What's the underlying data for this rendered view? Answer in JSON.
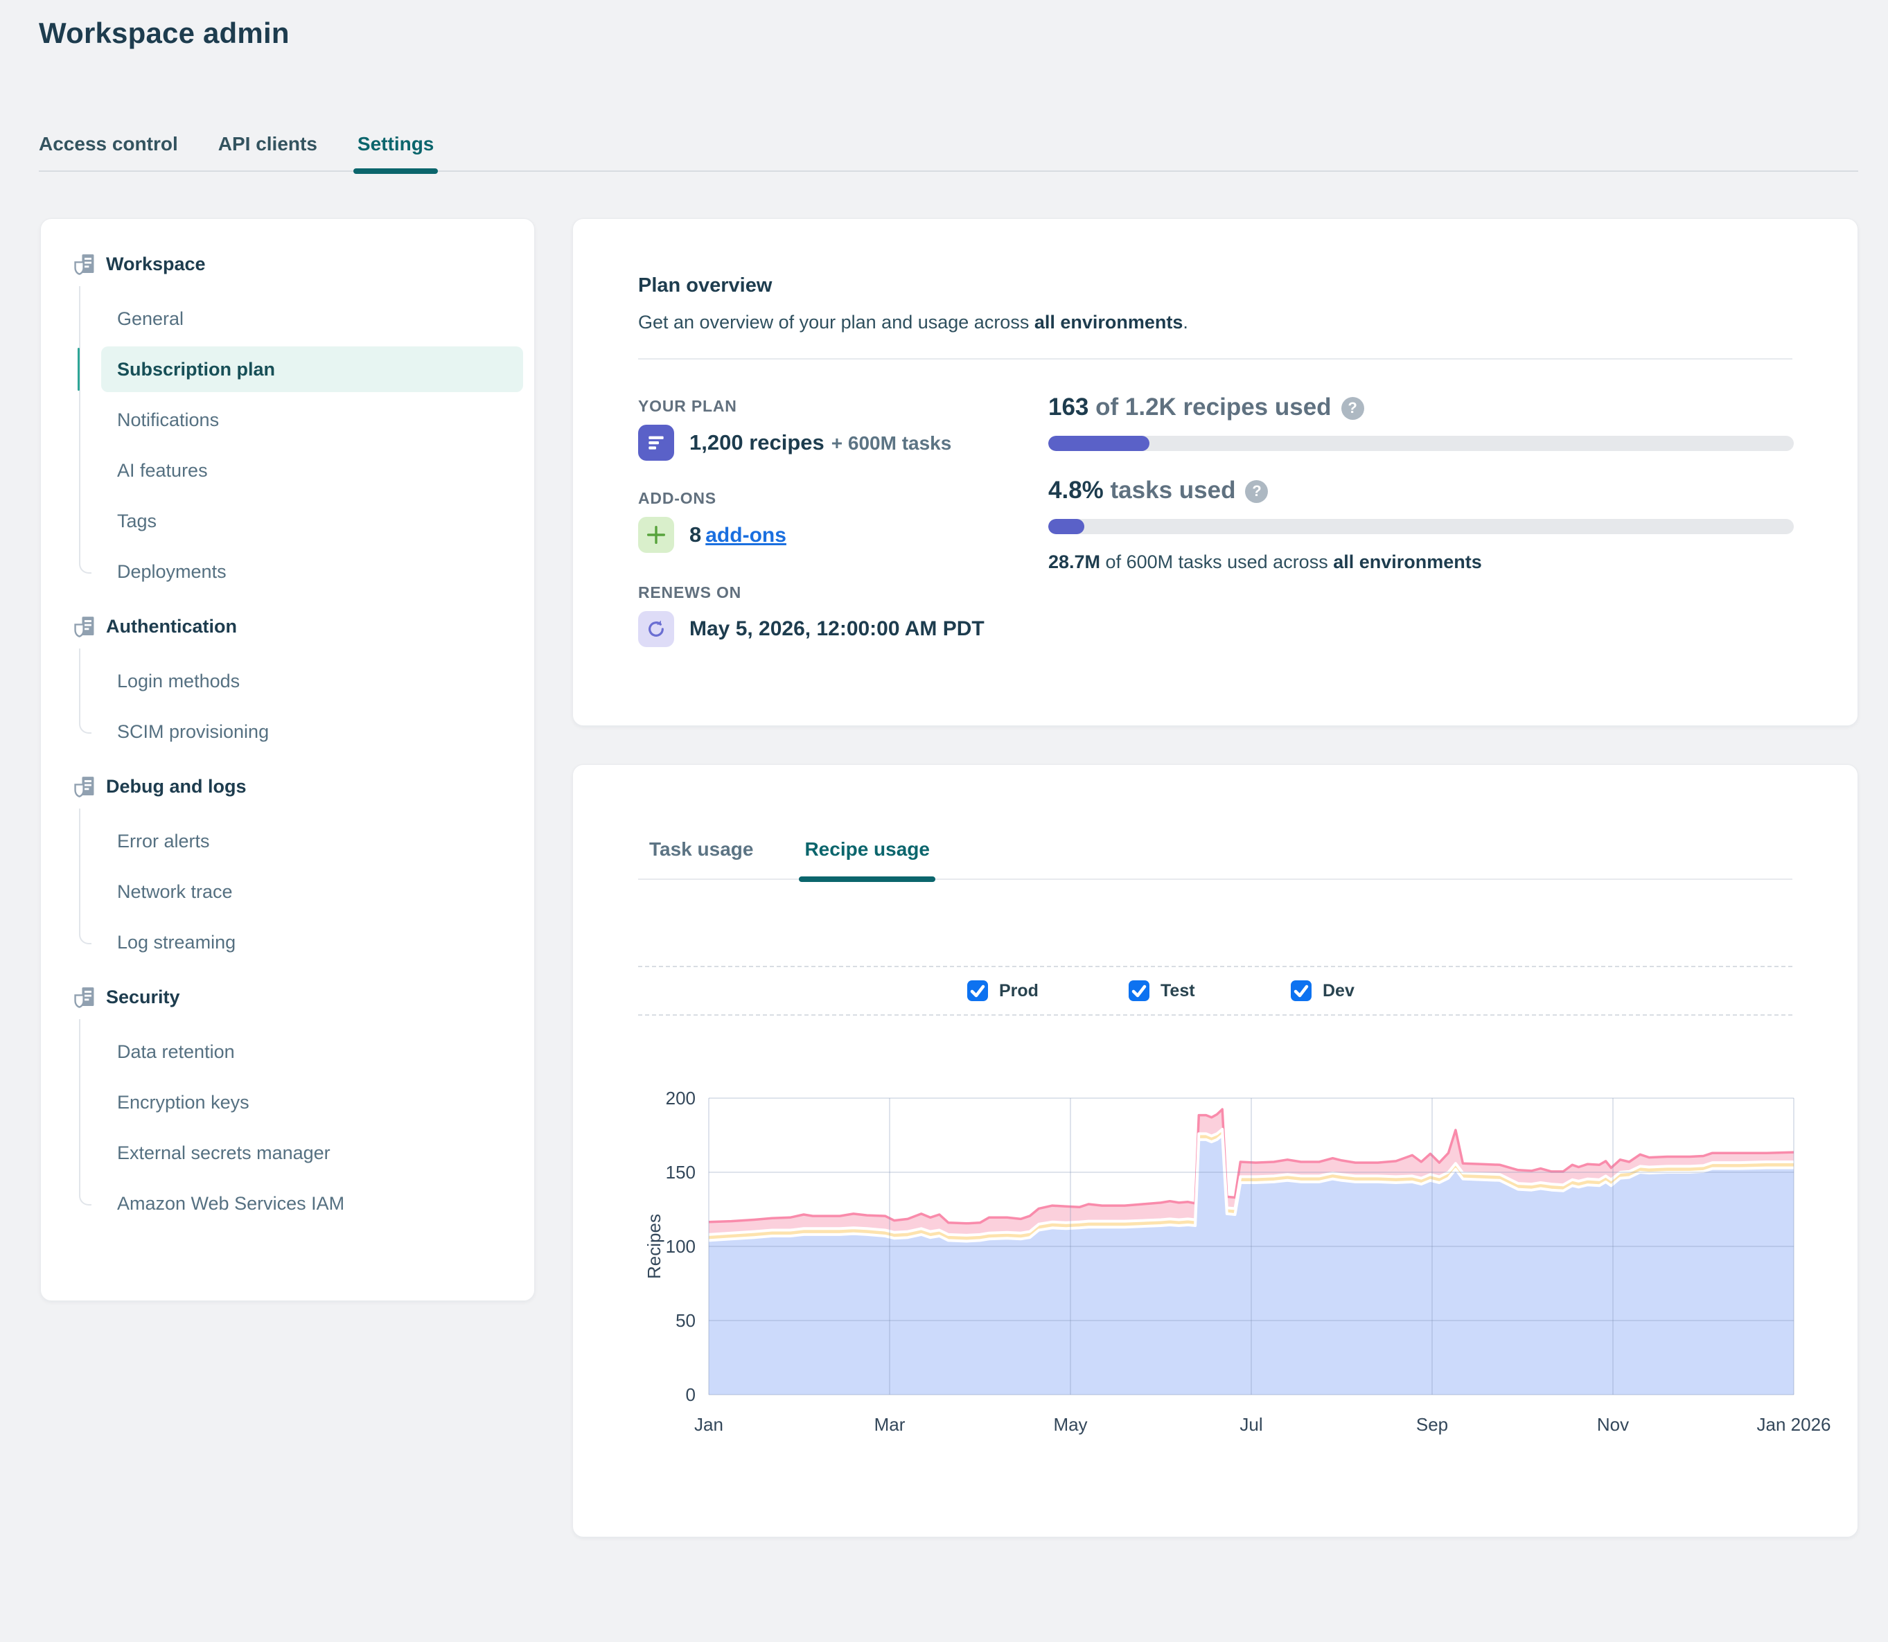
{
  "page": {
    "title": "Workspace admin",
    "tabs": [
      {
        "label": "Access control",
        "active": false
      },
      {
        "label": "API clients",
        "active": false
      },
      {
        "label": "Settings",
        "active": true
      }
    ]
  },
  "colors": {
    "accent_teal": "#0b656c",
    "indigo": "#5a61c8",
    "link_blue": "#1a6fdf",
    "checkbox_blue": "#0d72f0",
    "active_item_bg": "#e7f5f2",
    "active_item_marker": "#2fa597"
  },
  "sidebar": {
    "sections": [
      {
        "label": "Workspace",
        "items": [
          {
            "label": "General",
            "active": false
          },
          {
            "label": "Subscription plan",
            "active": true
          },
          {
            "label": "Notifications",
            "active": false
          },
          {
            "label": "AI features",
            "active": false
          },
          {
            "label": "Tags",
            "active": false
          },
          {
            "label": "Deployments",
            "active": false
          }
        ]
      },
      {
        "label": "Authentication",
        "items": [
          {
            "label": "Login methods",
            "active": false
          },
          {
            "label": "SCIM provisioning",
            "active": false
          }
        ]
      },
      {
        "label": "Debug and logs",
        "items": [
          {
            "label": "Error alerts",
            "active": false
          },
          {
            "label": "Network trace",
            "active": false
          },
          {
            "label": "Log streaming",
            "active": false
          }
        ]
      },
      {
        "label": "Security",
        "items": [
          {
            "label": "Data retention",
            "active": false
          },
          {
            "label": "Encryption keys",
            "active": false
          },
          {
            "label": "External secrets manager",
            "active": false
          },
          {
            "label": "Amazon Web Services IAM",
            "active": false
          }
        ]
      }
    ]
  },
  "plan_overview": {
    "title": "Plan overview",
    "description_prefix": "Get an overview of your plan and usage across ",
    "description_bold": "all environments",
    "description_suffix": ".",
    "your_plan": {
      "label": "YOUR PLAN",
      "recipes": "1,200 recipes",
      "tasks": "+ 600M tasks"
    },
    "addons": {
      "label": "ADD-ONS",
      "count": "8",
      "link": "add-ons"
    },
    "renews": {
      "label": "RENEWS ON",
      "date": "May 5, 2026, 12:00:00 AM PDT"
    },
    "recipes_usage": {
      "value": "163",
      "rest": "of 1.2K recipes used",
      "percent": 13.6
    },
    "tasks_usage": {
      "value": "4.8%",
      "rest": "tasks used",
      "percent": 4.8,
      "caption_value": "28.7M",
      "caption_mid": " of 600M tasks used across ",
      "caption_bold": "all environments"
    }
  },
  "usage_card": {
    "tabs": [
      {
        "label": "Task usage",
        "active": false
      },
      {
        "label": "Recipe usage",
        "active": true
      }
    ]
  },
  "chart_data": {
    "type": "area",
    "stacked": true,
    "title": "Recipe usage",
    "ylabel": "Recipes",
    "ylim": [
      0,
      200
    ],
    "yticks": [
      0,
      50,
      100,
      150,
      200
    ],
    "xlim_months": [
      0,
      12
    ],
    "xticks": [
      {
        "pos": 0,
        "label": "Jan"
      },
      {
        "pos": 2,
        "label": "Mar"
      },
      {
        "pos": 4,
        "label": "May"
      },
      {
        "pos": 6,
        "label": "Jul"
      },
      {
        "pos": 8,
        "label": "Sep"
      },
      {
        "pos": 10,
        "label": "Nov"
      },
      {
        "pos": 12,
        "label": "Jan 2026"
      }
    ],
    "legend": {
      "items": [
        {
          "label": "Prod",
          "checked": true
        },
        {
          "label": "Test",
          "checked": true
        },
        {
          "label": "Dev",
          "checked": true
        }
      ]
    },
    "grid": true,
    "x": [
      0.0,
      0.25,
      0.5,
      0.7,
      0.9,
      1.05,
      1.15,
      1.45,
      1.6,
      1.75,
      1.95,
      2.05,
      2.2,
      2.35,
      2.45,
      2.55,
      2.65,
      2.85,
      3.0,
      3.1,
      3.3,
      3.45,
      3.55,
      3.65,
      3.8,
      3.95,
      4.1,
      4.2,
      4.35,
      4.6,
      4.8,
      5.0,
      5.1,
      5.2,
      5.3,
      5.38,
      5.42,
      5.5,
      5.56,
      5.62,
      5.68,
      5.73,
      5.82,
      5.88,
      6.05,
      6.25,
      6.4,
      6.55,
      6.75,
      6.9,
      7.0,
      7.15,
      7.4,
      7.6,
      7.78,
      7.88,
      7.98,
      8.08,
      8.18,
      8.26,
      8.34,
      8.55,
      8.75,
      8.95,
      9.1,
      9.2,
      9.32,
      9.45,
      9.55,
      9.62,
      9.72,
      9.85,
      9.92,
      9.98,
      10.08,
      10.18,
      10.3,
      10.4,
      10.6,
      10.85,
      11.0,
      11.1,
      11.4,
      11.7,
      12.0
    ],
    "series": [
      {
        "name": "Prod",
        "color": "#ccdafb",
        "edge": "#ffffff",
        "values": [
          104,
          105,
          106,
          107,
          107,
          108,
          108,
          108,
          108.5,
          108,
          107,
          105.5,
          106,
          108,
          106,
          107,
          104,
          103.5,
          104,
          105,
          105.5,
          105,
          106,
          111,
          112.5,
          112,
          112.5,
          113,
          113,
          113,
          113.5,
          114,
          114.5,
          114,
          114.5,
          114,
          172,
          172,
          170.5,
          172,
          175,
          122,
          121.5,
          143,
          143,
          143.5,
          144.5,
          143.5,
          143.5,
          145.5,
          144.5,
          143.5,
          143.5,
          143,
          143.5,
          142,
          144.5,
          143,
          146,
          152,
          145.5,
          145,
          144.5,
          138.5,
          138,
          139,
          138,
          137.5,
          141,
          140,
          141.5,
          141,
          143.5,
          141,
          146,
          146.5,
          150,
          149.5,
          150,
          150,
          150.5,
          152.5,
          152.5,
          153,
          153
        ]
      },
      {
        "name": "Test",
        "color": "#fde3ae",
        "edge": "#ffffff",
        "values": [
          4,
          4,
          4,
          4,
          4,
          4,
          4,
          4,
          4,
          4,
          4,
          4,
          4,
          4,
          4,
          4,
          4,
          4,
          4,
          4,
          4,
          4,
          4,
          4,
          4,
          4,
          4,
          4,
          4,
          4,
          4,
          4,
          4,
          4,
          4,
          4,
          4,
          4,
          4,
          4,
          4,
          4,
          4,
          4,
          4,
          4,
          4,
          4,
          4,
          4,
          4,
          4,
          4,
          4,
          4,
          4,
          4,
          4,
          4,
          4,
          4,
          4,
          4,
          4,
          4,
          4,
          4,
          4,
          4,
          4,
          4,
          4,
          4,
          4,
          4,
          4,
          4,
          4,
          4,
          4,
          4,
          4,
          4,
          4,
          4
        ]
      },
      {
        "name": "Dev",
        "color": "#fbd0dc",
        "edge": "#f98bab",
        "values": [
          8.5,
          8,
          8,
          8,
          8.5,
          9.5,
          8.5,
          8.5,
          9.5,
          9,
          9.5,
          8,
          8.5,
          10,
          9.5,
          10.5,
          8,
          8,
          8,
          10.5,
          10,
          9.5,
          10.5,
          10.5,
          11,
          11,
          10,
          11.5,
          10.5,
          10.5,
          11,
          11.5,
          12,
          11.5,
          11.5,
          11,
          12.5,
          12.5,
          12.5,
          13,
          13.5,
          7.5,
          7.5,
          10,
          9.5,
          9.5,
          10,
          9.5,
          9.5,
          10,
          9.5,
          9,
          9,
          10.5,
          14,
          11,
          14,
          9.5,
          13,
          22.5,
          6.5,
          6.5,
          6.5,
          9,
          9,
          9.5,
          8.5,
          9,
          10,
          9.5,
          10,
          10,
          10,
          8,
          8.5,
          6.5,
          8,
          6.5,
          6.5,
          6.5,
          6.5,
          6.5,
          6.5,
          6,
          6.5
        ]
      }
    ]
  }
}
